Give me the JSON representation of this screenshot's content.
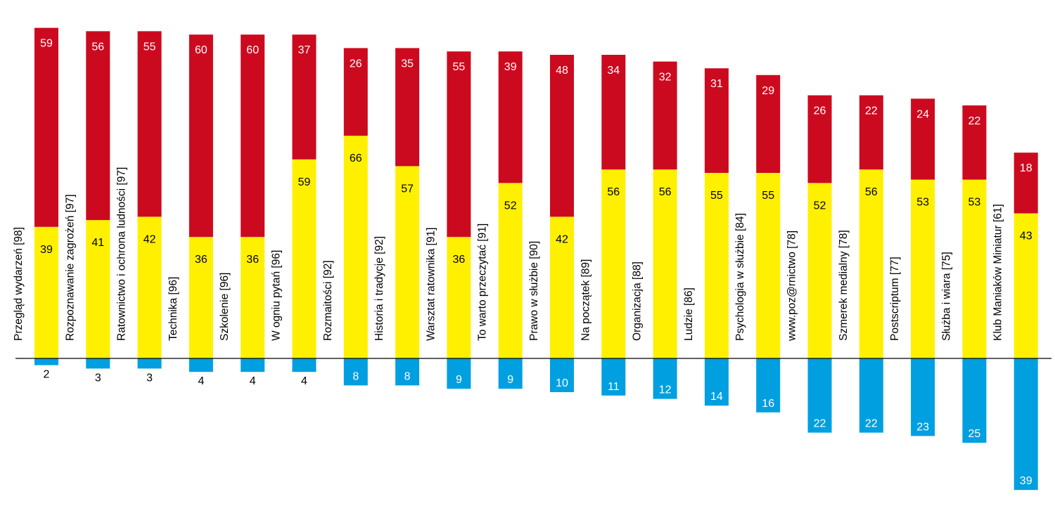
{
  "chart_data": {
    "type": "bar",
    "stacked": true,
    "categories": [
      "Przegląd wydarzeń [98]",
      "Rozpoznawanie zagrożeń [97]",
      "Ratownictwo i ochrona ludności [97]",
      "Technika [96]",
      "Szkolenie [96]",
      "W ogniu pytań [96]",
      "Rozmaitości [92]",
      "Historia i tradycje [92]",
      "Warsztat ratownika [91]",
      "To warto przeczytać [91]",
      "Prawo w służbie [90]",
      "Na początek [89]",
      "Organizacja [88]",
      "Ludzie [86]",
      "Psychologia w służbie [84]",
      "www.poz@rnictwo [78]",
      "Szmerek medialny [78]",
      "Postscriptum [77]",
      "Służba i wiara [75]",
      "Klub Maniaków Miniatur [61]"
    ],
    "series": [
      {
        "color": "#fff000",
        "values": [
          39,
          41,
          42,
          36,
          36,
          59,
          66,
          57,
          36,
          52,
          42,
          56,
          56,
          55,
          55,
          52,
          56,
          53,
          53,
          43
        ]
      },
      {
        "color": "#cc0a1f",
        "values": [
          59,
          56,
          55,
          60,
          60,
          37,
          26,
          35,
          55,
          39,
          48,
          34,
          32,
          31,
          29,
          26,
          22,
          24,
          22,
          18
        ]
      },
      {
        "color": "#009fe0",
        "direction": "below-axis",
        "values": [
          2,
          3,
          3,
          4,
          4,
          4,
          8,
          8,
          9,
          9,
          10,
          11,
          12,
          14,
          16,
          22,
          22,
          23,
          25,
          39
        ]
      }
    ],
    "title": "",
    "xlabel": "",
    "ylabel": "",
    "grid": false,
    "legend": "none"
  }
}
